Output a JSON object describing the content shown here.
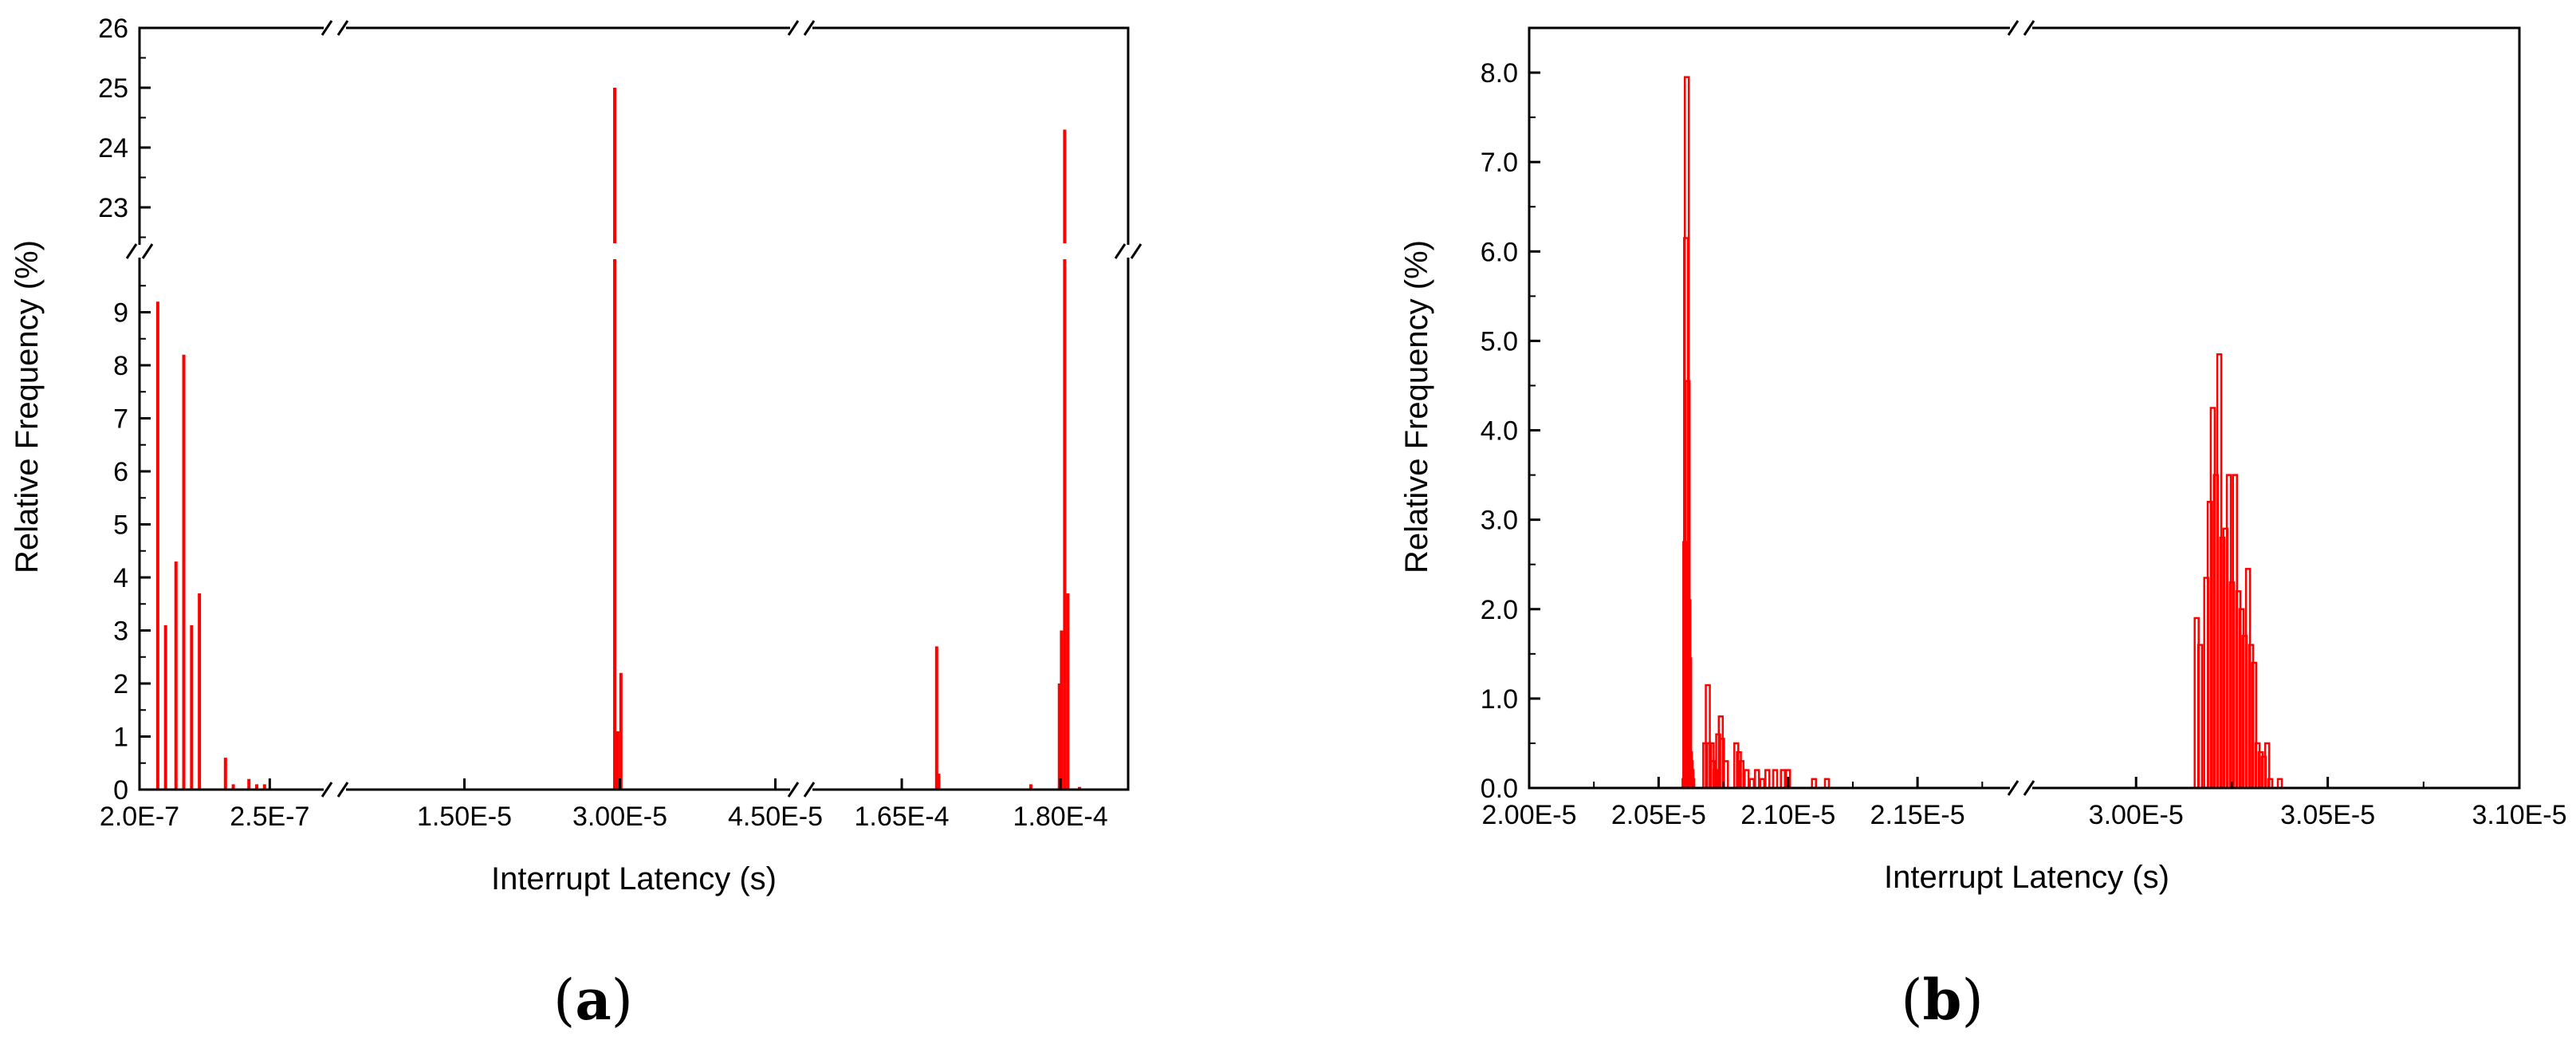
{
  "colors": {
    "bar": "#ff0000",
    "axis": "#000000"
  },
  "chart_data": [
    {
      "type": "bar",
      "caption_open": "(",
      "caption_letter": "a",
      "caption_close": ")",
      "xlabel": "Interrupt Latency (s)",
      "ylabel": "Relative Frequency (%)",
      "broken_x_axis": true,
      "broken_y_axis": true,
      "y_lower_range": [
        0,
        10
      ],
      "y_upper_range": [
        22.4,
        26
      ],
      "x_segments": [
        {
          "range": [
            2e-07,
            2.75e-07
          ],
          "ticks": [
            "2.0E-7",
            "2.5E-7"
          ]
        },
        {
          "range": [
            2.5e-06,
            4.75e-05
          ],
          "ticks": [
            "1.50E-5",
            "3.00E-5",
            "4.50E-5"
          ]
        },
        {
          "range": [
            0.0001555,
            0.0001864
          ],
          "ticks": [
            "1.65E-4",
            "1.80E-4"
          ]
        }
      ],
      "y_lower_ticks": [
        "0",
        "1",
        "2",
        "3",
        "4",
        "5",
        "6",
        "7",
        "8",
        "9"
      ],
      "y_upper_ticks": [
        "23",
        "24",
        "25",
        "26"
      ],
      "bars": [
        {
          "x": 2.07e-07,
          "y": 9.2
        },
        {
          "x": 2.1e-07,
          "y": 3.1
        },
        {
          "x": 2.14e-07,
          "y": 4.3
        },
        {
          "x": 2.17e-07,
          "y": 8.2
        },
        {
          "x": 2.2e-07,
          "y": 3.1
        },
        {
          "x": 2.23e-07,
          "y": 3.7
        },
        {
          "x": 2.33e-07,
          "y": 0.6
        },
        {
          "x": 2.36e-07,
          "y": 0.1
        },
        {
          "x": 2.42e-07,
          "y": 0.2
        },
        {
          "x": 2.45e-07,
          "y": 0.1
        },
        {
          "x": 2.48e-07,
          "y": 0.1
        },
        {
          "x": 2.95e-05,
          "y": 25.0
        },
        {
          "x": 2.98e-05,
          "y": 1.1
        },
        {
          "x": 3.01e-05,
          "y": 2.2
        },
        {
          "x": 0.0001683,
          "y": 2.7
        },
        {
          "x": 0.0001685,
          "y": 0.3
        },
        {
          "x": 0.0001772,
          "y": 0.1
        },
        {
          "x": 0.0001799,
          "y": 2.0
        },
        {
          "x": 0.0001801,
          "y": 3.0
        },
        {
          "x": 0.0001804,
          "y": 24.3
        },
        {
          "x": 0.0001807,
          "y": 3.7
        },
        {
          "x": 0.0001818,
          "y": 0.05
        }
      ]
    },
    {
      "type": "bar",
      "caption_open": "(",
      "caption_letter": "b",
      "caption_close": ")",
      "xlabel": "Interrupt Latency (s)",
      "ylabel": "Relative Frequency (%)",
      "broken_x_axis": true,
      "ylim": [
        0,
        8.5
      ],
      "y_ticks": [
        "0.0",
        "1.0",
        "2.0",
        "3.0",
        "4.0",
        "5.0",
        "6.0",
        "7.0",
        "8.0"
      ],
      "x_segments": [
        {
          "range": [
            2e-05,
            2.19e-05
          ],
          "ticks": [
            "2.00E-5",
            "2.05E-5",
            "2.10E-5",
            "2.15E-5"
          ]
        },
        {
          "range": [
            2.97e-05,
            3.1e-05
          ],
          "ticks": [
            "3.00E-5",
            "3.05E-5",
            "3.10E-5"
          ]
        }
      ],
      "bin_width": 2.5e-09,
      "bars": [
        {
          "x": 2.06e-05,
          "y": 0.1
        },
        {
          "x": 2.0603e-05,
          "y": 2.75
        },
        {
          "x": 2.0606e-05,
          "y": 6.15
        },
        {
          "x": 2.0609e-05,
          "y": 7.95
        },
        {
          "x": 2.0612e-05,
          "y": 4.55
        },
        {
          "x": 2.0615e-05,
          "y": 2.1
        },
        {
          "x": 2.0618e-05,
          "y": 1.45
        },
        {
          "x": 2.0621e-05,
          "y": 0.4
        },
        {
          "x": 2.0624e-05,
          "y": 0.3
        },
        {
          "x": 2.0627e-05,
          "y": 0.2
        },
        {
          "x": 2.063e-05,
          "y": 0.1
        },
        {
          "x": 2.068e-05,
          "y": 0.5
        },
        {
          "x": 2.069e-05,
          "y": 1.15
        },
        {
          "x": 2.0695e-05,
          "y": 0.5
        },
        {
          "x": 2.0705e-05,
          "y": 0.5
        },
        {
          "x": 2.071e-05,
          "y": 0.3
        },
        {
          "x": 2.072e-05,
          "y": 0.2
        },
        {
          "x": 2.073e-05,
          "y": 0.6
        },
        {
          "x": 2.074e-05,
          "y": 0.8
        },
        {
          "x": 2.0745e-05,
          "y": 0.55
        },
        {
          "x": 2.076e-05,
          "y": 0.3
        },
        {
          "x": 2.08e-05,
          "y": 0.5
        },
        {
          "x": 2.081e-05,
          "y": 0.4
        },
        {
          "x": 2.082e-05,
          "y": 0.3
        },
        {
          "x": 2.084e-05,
          "y": 0.2
        },
        {
          "x": 2.086e-05,
          "y": 0.1
        },
        {
          "x": 2.088e-05,
          "y": 0.2
        },
        {
          "x": 2.09e-05,
          "y": 0.1
        },
        {
          "x": 2.092e-05,
          "y": 0.2
        },
        {
          "x": 2.095e-05,
          "y": 0.2
        },
        {
          "x": 2.098e-05,
          "y": 0.2
        },
        {
          "x": 2.1e-05,
          "y": 0.2
        },
        {
          "x": 2.11e-05,
          "y": 0.1
        },
        {
          "x": 2.115e-05,
          "y": 0.1
        },
        {
          "x": 3.0158e-05,
          "y": 1.9
        },
        {
          "x": 3.0167e-05,
          "y": 1.6
        },
        {
          "x": 3.0183e-05,
          "y": 2.35
        },
        {
          "x": 3.0192e-05,
          "y": 3.2
        },
        {
          "x": 3.02e-05,
          "y": 4.25
        },
        {
          "x": 3.0208e-05,
          "y": 3.5
        },
        {
          "x": 3.0217e-05,
          "y": 4.85
        },
        {
          "x": 3.0225e-05,
          "y": 2.8
        },
        {
          "x": 3.0233e-05,
          "y": 2.9
        },
        {
          "x": 3.0242e-05,
          "y": 3.5
        },
        {
          "x": 3.025e-05,
          "y": 2.3
        },
        {
          "x": 3.0258e-05,
          "y": 3.5
        },
        {
          "x": 3.0267e-05,
          "y": 2.2
        },
        {
          "x": 3.0275e-05,
          "y": 2.0
        },
        {
          "x": 3.0283e-05,
          "y": 1.7
        },
        {
          "x": 3.0292e-05,
          "y": 2.45
        },
        {
          "x": 3.03e-05,
          "y": 1.6
        },
        {
          "x": 3.0308e-05,
          "y": 1.4
        },
        {
          "x": 3.0317e-05,
          "y": 0.5
        },
        {
          "x": 3.0325e-05,
          "y": 0.4
        },
        {
          "x": 3.0333e-05,
          "y": 0.35
        },
        {
          "x": 3.0342e-05,
          "y": 0.5
        },
        {
          "x": 3.035e-05,
          "y": 0.1
        },
        {
          "x": 3.0375e-05,
          "y": 0.1
        }
      ]
    }
  ]
}
